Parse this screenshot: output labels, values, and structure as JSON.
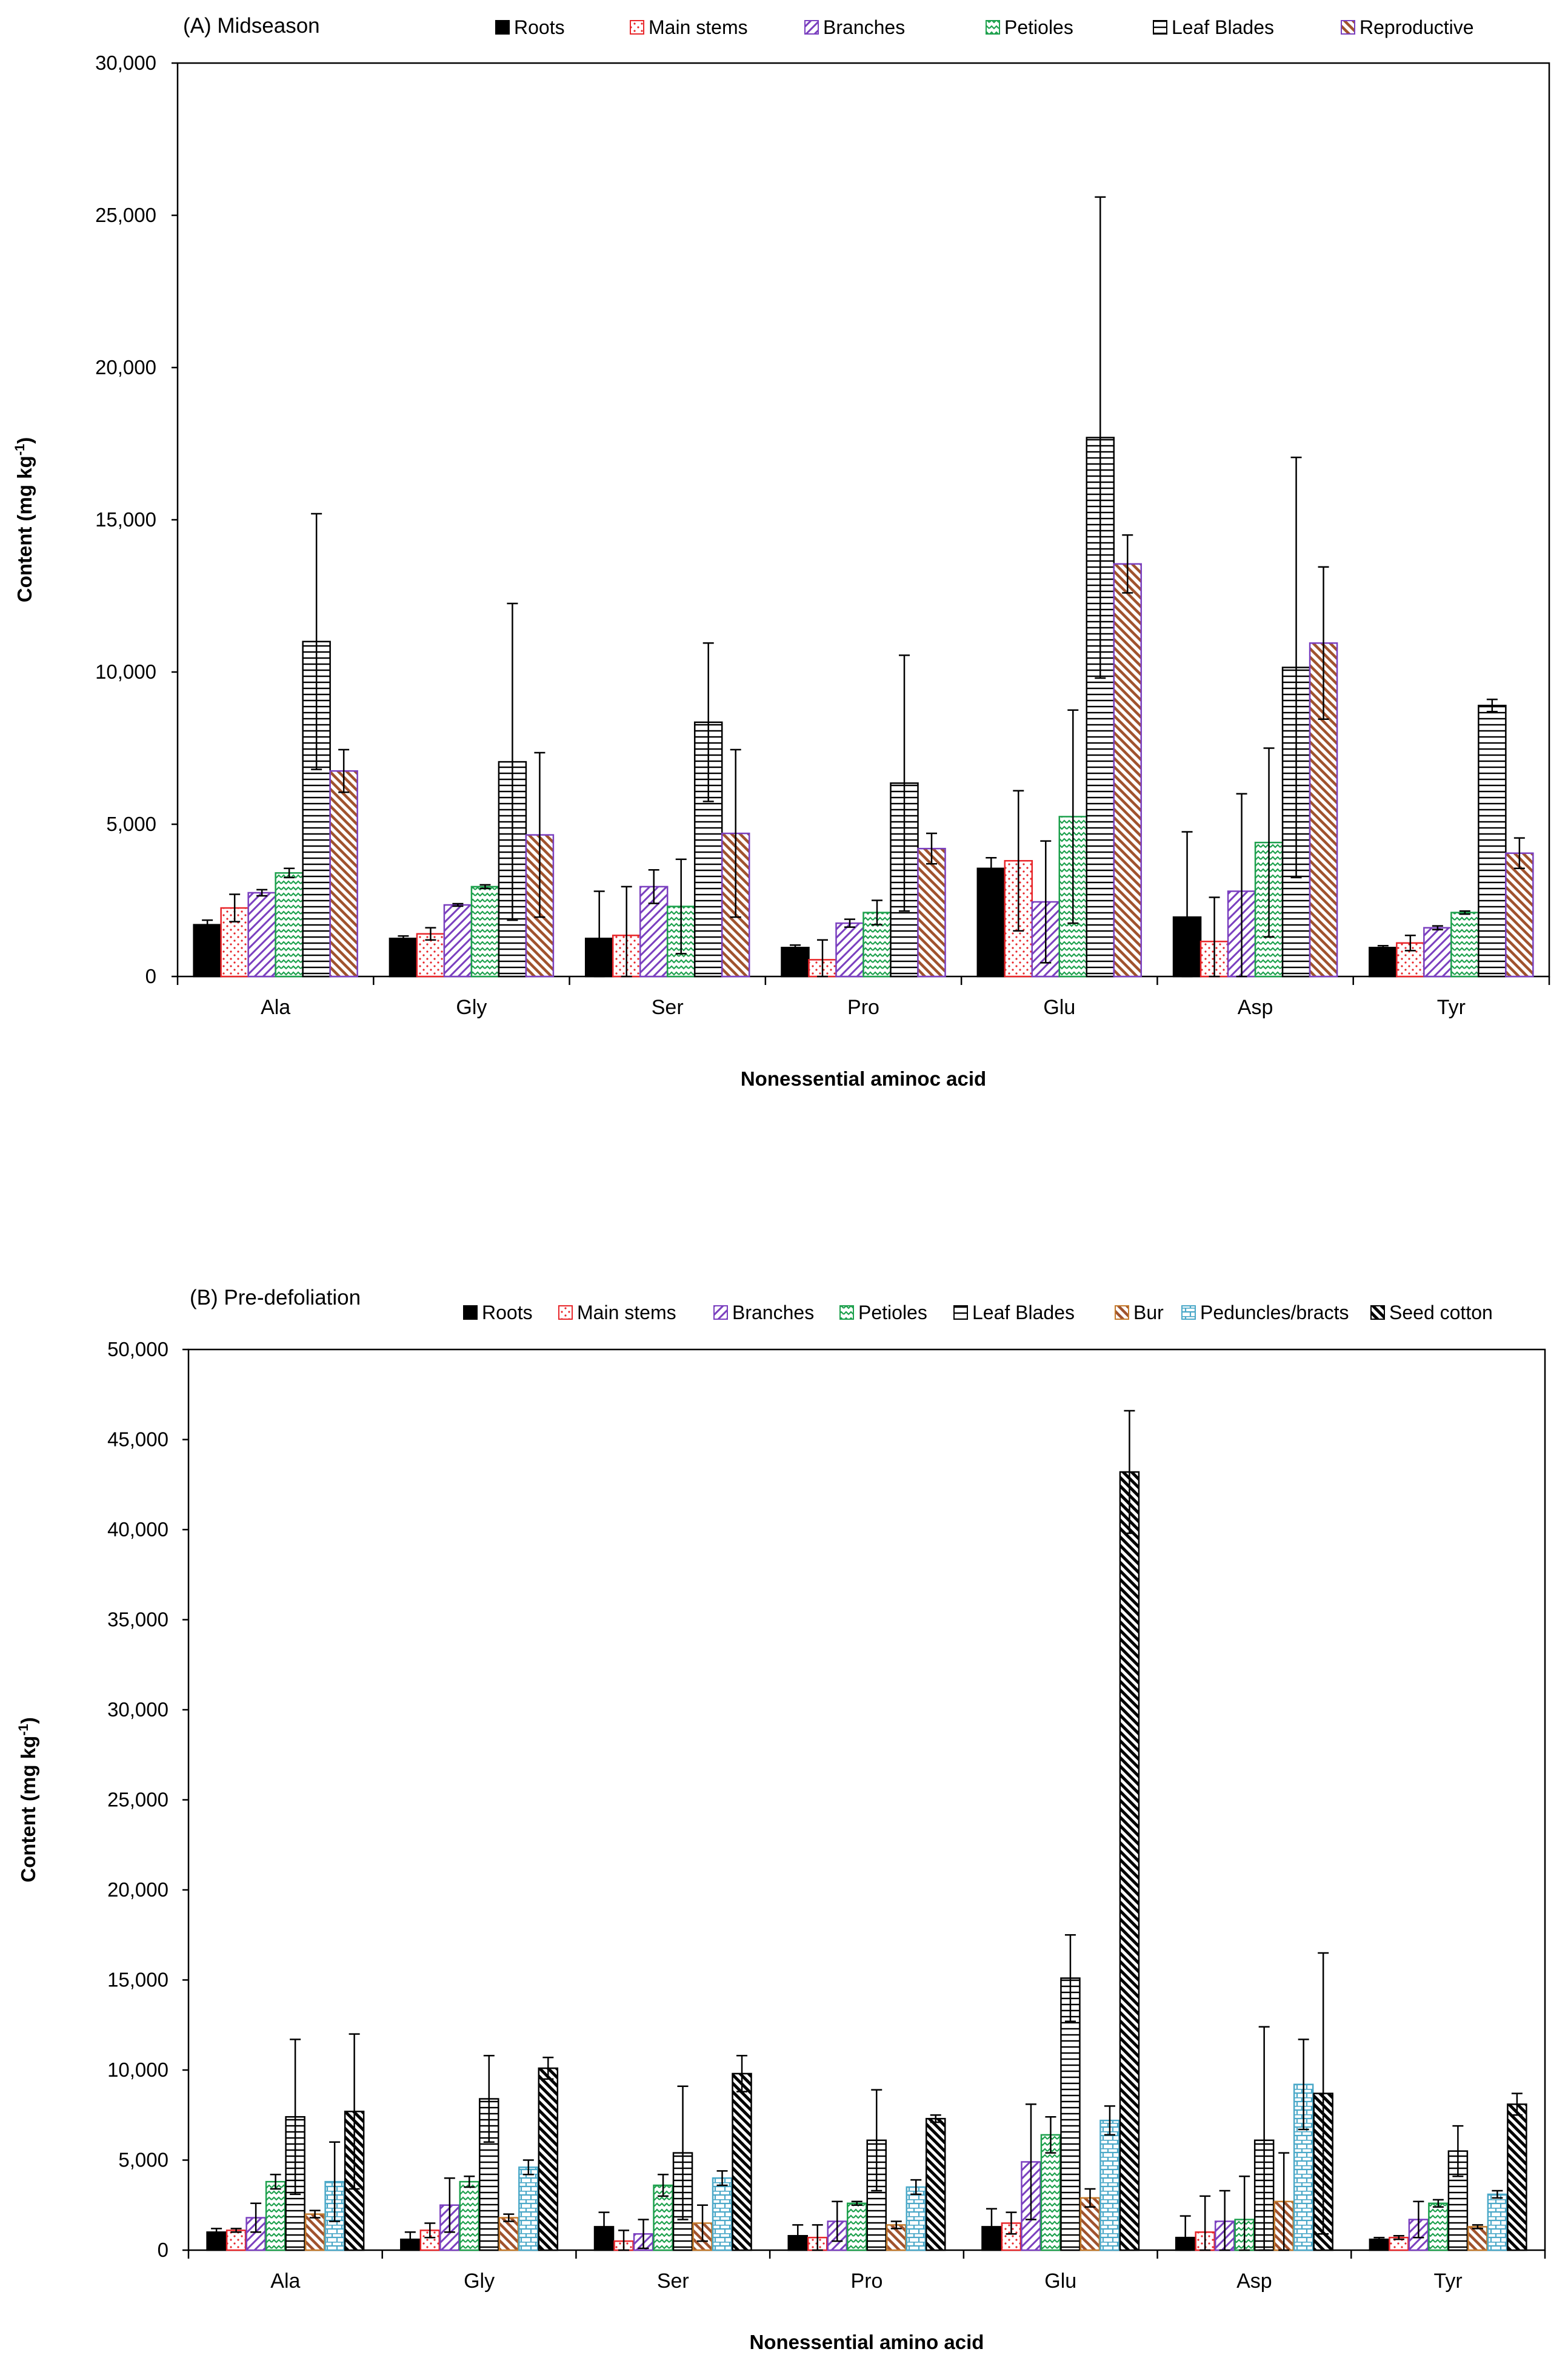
{
  "chart_data": [
    {
      "type": "bar",
      "title": "(A) Midseason",
      "xlabel": "Nonessential aminoc acid",
      "ylabel": "Content (mg kg-1)",
      "ylabel_main": "Content (mg kg",
      "ylabel_sup": "-1",
      "ylabel_close": ")",
      "ylim": [
        0,
        30000
      ],
      "yticks": [
        0,
        5000,
        10000,
        15000,
        20000,
        25000,
        30000
      ],
      "ytick_labels": [
        "0",
        "5,000",
        "10,000",
        "15,000",
        "20,000",
        "25,000",
        "30,000"
      ],
      "categories": [
        "Ala",
        "Gly",
        "Ser",
        "Pro",
        "Glu",
        "Asp",
        "Tyr"
      ],
      "legend_position": "top",
      "series": [
        {
          "name": "Roots",
          "style": "solid",
          "color": "#000000",
          "values": [
            1700,
            1250,
            1250,
            950,
            3550,
            1950,
            950
          ],
          "errors": [
            150,
            80,
            1550,
            80,
            350,
            2800,
            60
          ]
        },
        {
          "name": "Main stems",
          "style": "dots",
          "color": "#e8262a",
          "values": [
            2250,
            1400,
            1350,
            550,
            3800,
            1150,
            1100
          ],
          "errors": [
            450,
            200,
            1600,
            650,
            2300,
            1450,
            250
          ]
        },
        {
          "name": "Branches",
          "style": "hatch-back",
          "color": "#7a3fbf",
          "values": [
            2750,
            2350,
            2950,
            1750,
            2450,
            2800,
            1600
          ],
          "errors": [
            100,
            40,
            550,
            130,
            2000,
            3200,
            60
          ]
        },
        {
          "name": "Petioles",
          "style": "zigzag",
          "color": "#1ca04c",
          "values": [
            3400,
            2950,
            2300,
            2100,
            5250,
            4400,
            2100
          ],
          "errors": [
            150,
            60,
            1550,
            400,
            3500,
            3100,
            50
          ]
        },
        {
          "name": "Leaf Blades",
          "style": "hlines",
          "color": "#000000",
          "values": [
            11000,
            7050,
            8350,
            6350,
            17700,
            10150,
            8900
          ],
          "errors": [
            4200,
            5200,
            2600,
            4200,
            7900,
            6900,
            200
          ]
        },
        {
          "name": "Reproductive",
          "style": "hatch-brown",
          "color": "#8b4513",
          "border": "#7a3fbf",
          "values": [
            6750,
            4650,
            4700,
            4200,
            13550,
            10950,
            4050
          ],
          "errors": [
            700,
            2700,
            2750,
            500,
            950,
            2500,
            500
          ]
        }
      ]
    },
    {
      "type": "bar",
      "title": "(B) Pre-defoliation",
      "xlabel": "Nonessential amino acid",
      "ylabel": "Content (mg kg-1)",
      "ylabel_main": "Content (mg kg",
      "ylabel_sup": "-1",
      "ylabel_close": ")",
      "ylim": [
        0,
        50000
      ],
      "yticks": [
        0,
        5000,
        10000,
        15000,
        20000,
        25000,
        30000,
        35000,
        40000,
        45000,
        50000
      ],
      "ytick_labels": [
        "0",
        "5,000",
        "10,000",
        "15,000",
        "20,000",
        "25,000",
        "30,000",
        "35,000",
        "40,000",
        "45,000",
        "50,000"
      ],
      "categories": [
        "Ala",
        "Gly",
        "Ser",
        "Pro",
        "Glu",
        "Asp",
        "Tyr"
      ],
      "legend_position": "top",
      "series": [
        {
          "name": "Roots",
          "style": "solid",
          "color": "#000000",
          "values": [
            1000,
            600,
            1300,
            800,
            1300,
            700,
            600
          ],
          "errors": [
            200,
            400,
            800,
            600,
            1000,
            1200,
            100
          ]
        },
        {
          "name": "Main stems",
          "style": "dots",
          "color": "#e8262a",
          "values": [
            1100,
            1100,
            500,
            700,
            1500,
            1000,
            700
          ],
          "errors": [
            100,
            400,
            600,
            700,
            600,
            2000,
            100
          ]
        },
        {
          "name": "Branches",
          "style": "hatch-back",
          "color": "#7a3fbf",
          "values": [
            1800,
            2500,
            900,
            1600,
            4900,
            1600,
            1700
          ],
          "errors": [
            800,
            1500,
            800,
            1100,
            3200,
            1700,
            1000
          ]
        },
        {
          "name": "Petioles",
          "style": "zigzag",
          "color": "#1ca04c",
          "values": [
            3800,
            3800,
            3600,
            2600,
            6400,
            1700,
            2600
          ],
          "errors": [
            400,
            300,
            600,
            100,
            1000,
            2400,
            200
          ]
        },
        {
          "name": "Leaf Blades",
          "style": "hlines",
          "color": "#000000",
          "values": [
            7400,
            8400,
            5400,
            6100,
            15100,
            6100,
            5500
          ],
          "errors": [
            4300,
            2400,
            3700,
            2800,
            2400,
            6300,
            1400
          ]
        },
        {
          "name": "Bur",
          "style": "hatch-brown",
          "color": "#c47a2c",
          "values": [
            2000,
            1800,
            1500,
            1400,
            2900,
            2700,
            1300
          ],
          "errors": [
            200,
            200,
            1000,
            200,
            500,
            2700,
            100
          ]
        },
        {
          "name": "Peduncles/bracts",
          "style": "bricks",
          "color": "#4aa8c8",
          "values": [
            3800,
            4600,
            4000,
            3500,
            7200,
            9200,
            3100
          ],
          "errors": [
            2200,
            400,
            400,
            400,
            800,
            2500,
            200
          ]
        },
        {
          "name": "Seed cotton",
          "style": "hatch-black",
          "color": "#000000",
          "values": [
            7700,
            10100,
            9800,
            7300,
            43200,
            8700,
            8100
          ],
          "errors": [
            4300,
            600,
            1000,
            200,
            3400,
            7800,
            600
          ]
        }
      ]
    }
  ]
}
